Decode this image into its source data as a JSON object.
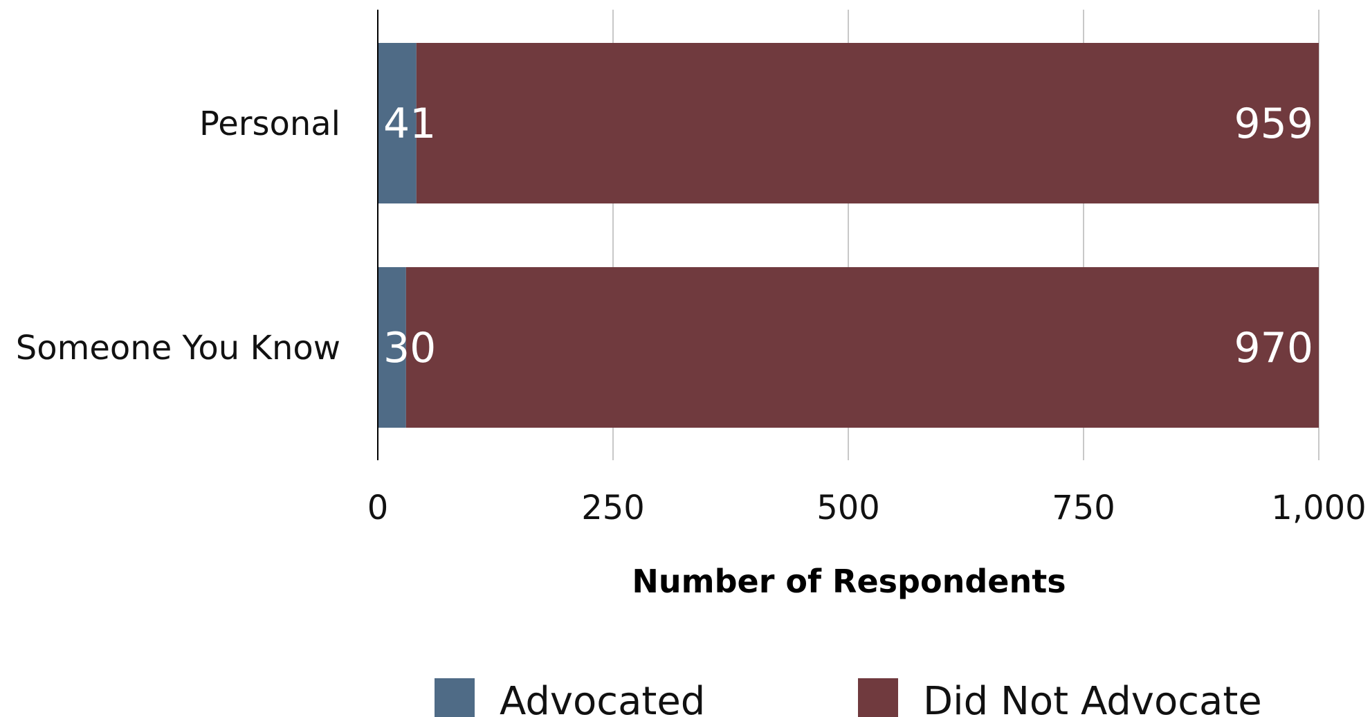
{
  "chart_data": {
    "type": "bar",
    "orientation": "horizontal",
    "stacked": true,
    "categories": [
      "Personal",
      "Someone You Know"
    ],
    "series": [
      {
        "name": "Advocated",
        "values": [
          41,
          30
        ],
        "color": "#4f6b86"
      },
      {
        "name": "Did Not Advocate",
        "values": [
          959,
          970
        ],
        "color": "#703a3e"
      }
    ],
    "xlabel": "Number of Respondents",
    "ylabel": "",
    "title": "",
    "xlim": [
      0,
      1000
    ],
    "xticks": [
      0,
      250,
      500,
      750,
      1000
    ],
    "xtick_labels": [
      "0",
      "250",
      "500",
      "750",
      "1,000"
    ],
    "grid": true,
    "legend_position": "bottom"
  }
}
